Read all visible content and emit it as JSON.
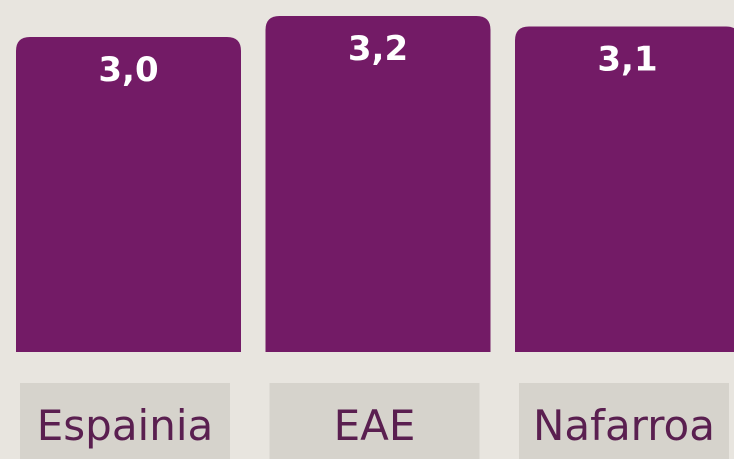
{
  "chart_data": {
    "type": "bar",
    "categories": [
      "Espainia",
      "EAE",
      "Nafarroa"
    ],
    "values": [
      3.0,
      3.2,
      3.1
    ],
    "value_labels": [
      "3,0",
      "3,2",
      "3,1"
    ],
    "color": "#731b66"
  }
}
